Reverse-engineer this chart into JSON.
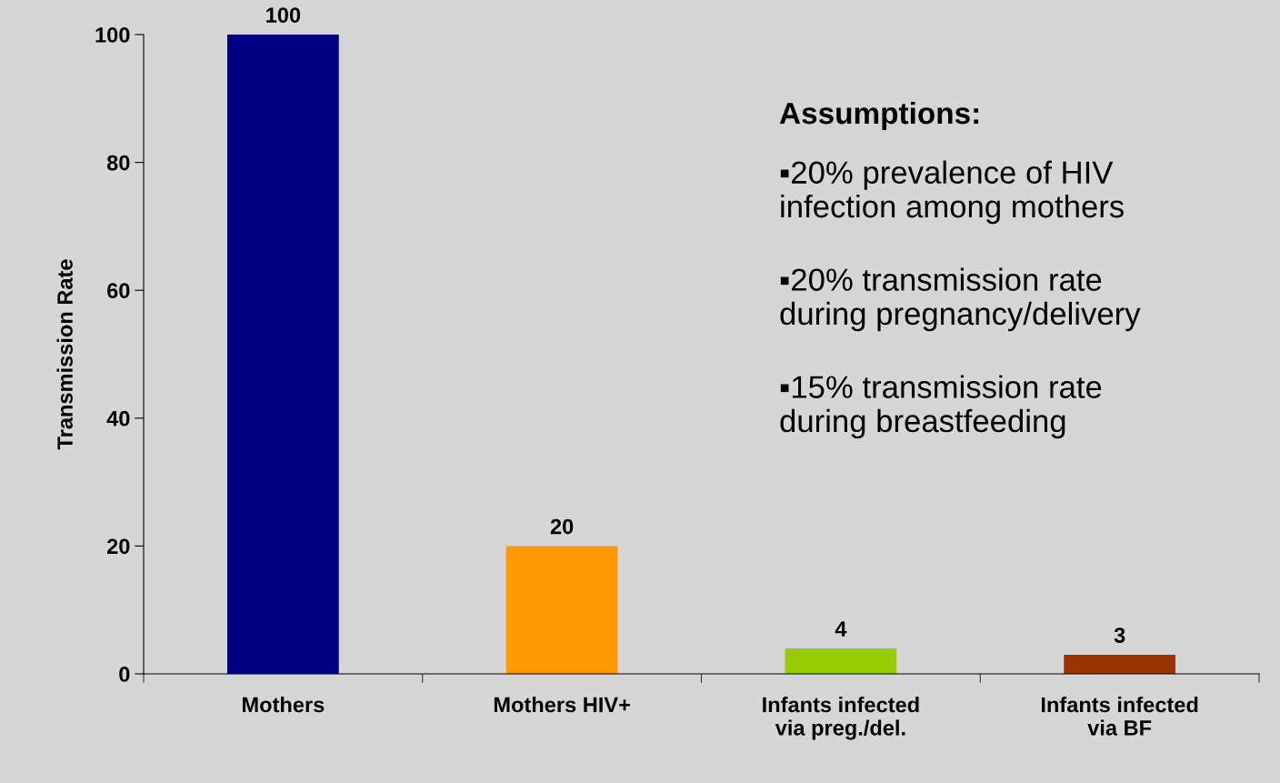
{
  "chart_data": {
    "type": "bar",
    "ylabel": "Transmission Rate",
    "categories": [
      "Mothers",
      "Mothers HIV+",
      "Infants infected\nvia preg./del.",
      "Infants infected\nvia BF"
    ],
    "values": [
      100,
      20,
      4,
      3
    ],
    "colors": [
      "#000080",
      "#ff9900",
      "#99cc00",
      "#993300"
    ],
    "ylim": [
      0,
      100
    ],
    "yticks": [
      0,
      20,
      40,
      60,
      80,
      100
    ],
    "grid": false,
    "data_labels": true,
    "annotations": [
      "Assumptions:",
      "▪20% prevalence of HIV\ninfection among mothers",
      "▪20% transmission rate\nduring pregnancy/delivery",
      "▪15% transmission rate\nduring breastfeeding"
    ]
  }
}
